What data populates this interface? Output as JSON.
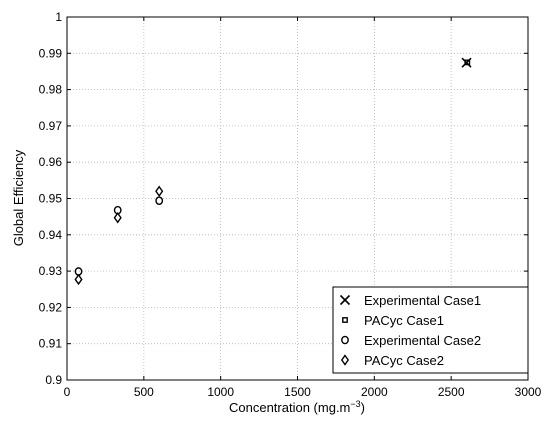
{
  "chart_data": {
    "type": "scatter",
    "title": "",
    "xlabel": "Concentration (mg.m",
    "xlabel_sup": "−3",
    "xlabel_end": ")",
    "ylabel": "Global Efficiency",
    "xlim": [
      0,
      3000
    ],
    "ylim": [
      0.9,
      1.0
    ],
    "xticks": [
      "0",
      "500",
      "1000",
      "1500",
      "2000",
      "2500",
      "3000"
    ],
    "yticks": [
      "0.9",
      "0.91",
      "0.92",
      "0.93",
      "0.94",
      "0.95",
      "0.96",
      "0.97",
      "0.98",
      "0.99",
      "1"
    ],
    "grid": true,
    "legend_position": "bottom-right",
    "series": [
      {
        "name": "Experimental Case1",
        "marker": "x",
        "points": [
          [
            2600,
            0.9874
          ]
        ]
      },
      {
        "name": "PACyc Case1",
        "marker": "square",
        "points": [
          [
            2605,
            0.9875
          ]
        ]
      },
      {
        "name": "Experimental Case2",
        "marker": "circle",
        "points": [
          [
            75,
            0.9299
          ],
          [
            330,
            0.9468
          ],
          [
            600,
            0.9494
          ]
        ]
      },
      {
        "name": "PACyc Case2",
        "marker": "diamond",
        "points": [
          [
            75,
            0.9277
          ],
          [
            330,
            0.9447
          ],
          [
            600,
            0.952
          ]
        ]
      }
    ]
  }
}
